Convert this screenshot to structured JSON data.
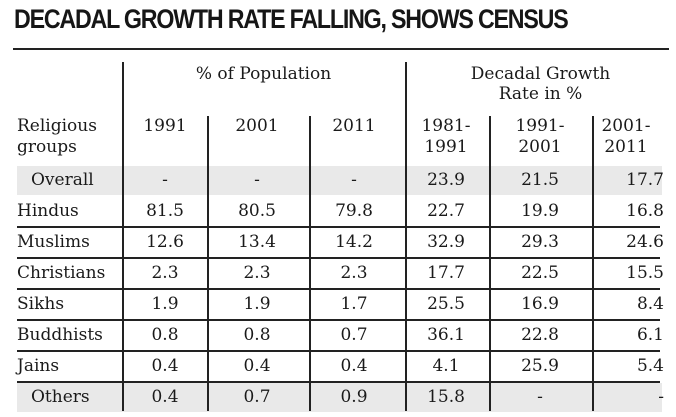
{
  "title": "DECADAL GROWTH RATE FALLING, SHOWS CENSUS",
  "chart_data": {
    "type": "table",
    "title": "DECADAL GROWTH RATE FALLING, SHOWS CENSUS",
    "column_groups": [
      {
        "label": "% of Population",
        "columns": [
          "1991",
          "2001",
          "2011"
        ]
      },
      {
        "label": "Decadal Growth Rate in %",
        "columns": [
          "1981-1991",
          "1991-2001",
          "2001-2011"
        ]
      }
    ],
    "row_header_label": "Religious groups",
    "rows": [
      {
        "group": "Overall",
        "values": [
          "-",
          "-",
          "-",
          "23.9",
          "21.5",
          "17.7"
        ],
        "shaded": true
      },
      {
        "group": "Hindus",
        "values": [
          "81.5",
          "80.5",
          "79.8",
          "22.7",
          "19.9",
          "16.8"
        ],
        "shaded": false
      },
      {
        "group": "Muslims",
        "values": [
          "12.6",
          "13.4",
          "14.2",
          "32.9",
          "29.3",
          "24.6"
        ],
        "shaded": false
      },
      {
        "group": "Christians",
        "values": [
          "2.3",
          "2.3",
          "2.3",
          "17.7",
          "22.5",
          "15.5"
        ],
        "shaded": false
      },
      {
        "group": "Sikhs",
        "values": [
          "1.9",
          "1.9",
          "1.7",
          "25.5",
          "16.9",
          "8.4"
        ],
        "shaded": false
      },
      {
        "group": "Buddhists",
        "values": [
          "0.8",
          "0.8",
          "0.7",
          "36.1",
          "22.8",
          "6.1"
        ],
        "shaded": false
      },
      {
        "group": "Jains",
        "values": [
          "0.4",
          "0.4",
          "0.4",
          "4.1",
          "25.9",
          "5.4"
        ],
        "shaded": false
      },
      {
        "group": "Others",
        "values": [
          "0.4",
          "0.7",
          "0.9",
          "15.8",
          "-",
          "-"
        ],
        "shaded": true
      }
    ]
  },
  "header": {
    "group1": "% of Population",
    "group2_line1": "Decadal Growth",
    "group2_line2": "Rate in %",
    "row_label_line1": "Religious",
    "row_label_line2": "groups",
    "cols": [
      {
        "l1": "1991",
        "l2": ""
      },
      {
        "l1": "2001",
        "l2": ""
      },
      {
        "l1": "2011",
        "l2": ""
      },
      {
        "l1": "1981-",
        "l2": "1991"
      },
      {
        "l1": "1991-",
        "l2": "2001"
      },
      {
        "l1": "2001-",
        "l2": "2011"
      }
    ]
  },
  "colors": {
    "shade": "#e9e9e9",
    "rule": "#222222",
    "text": "#1a1a1a"
  }
}
